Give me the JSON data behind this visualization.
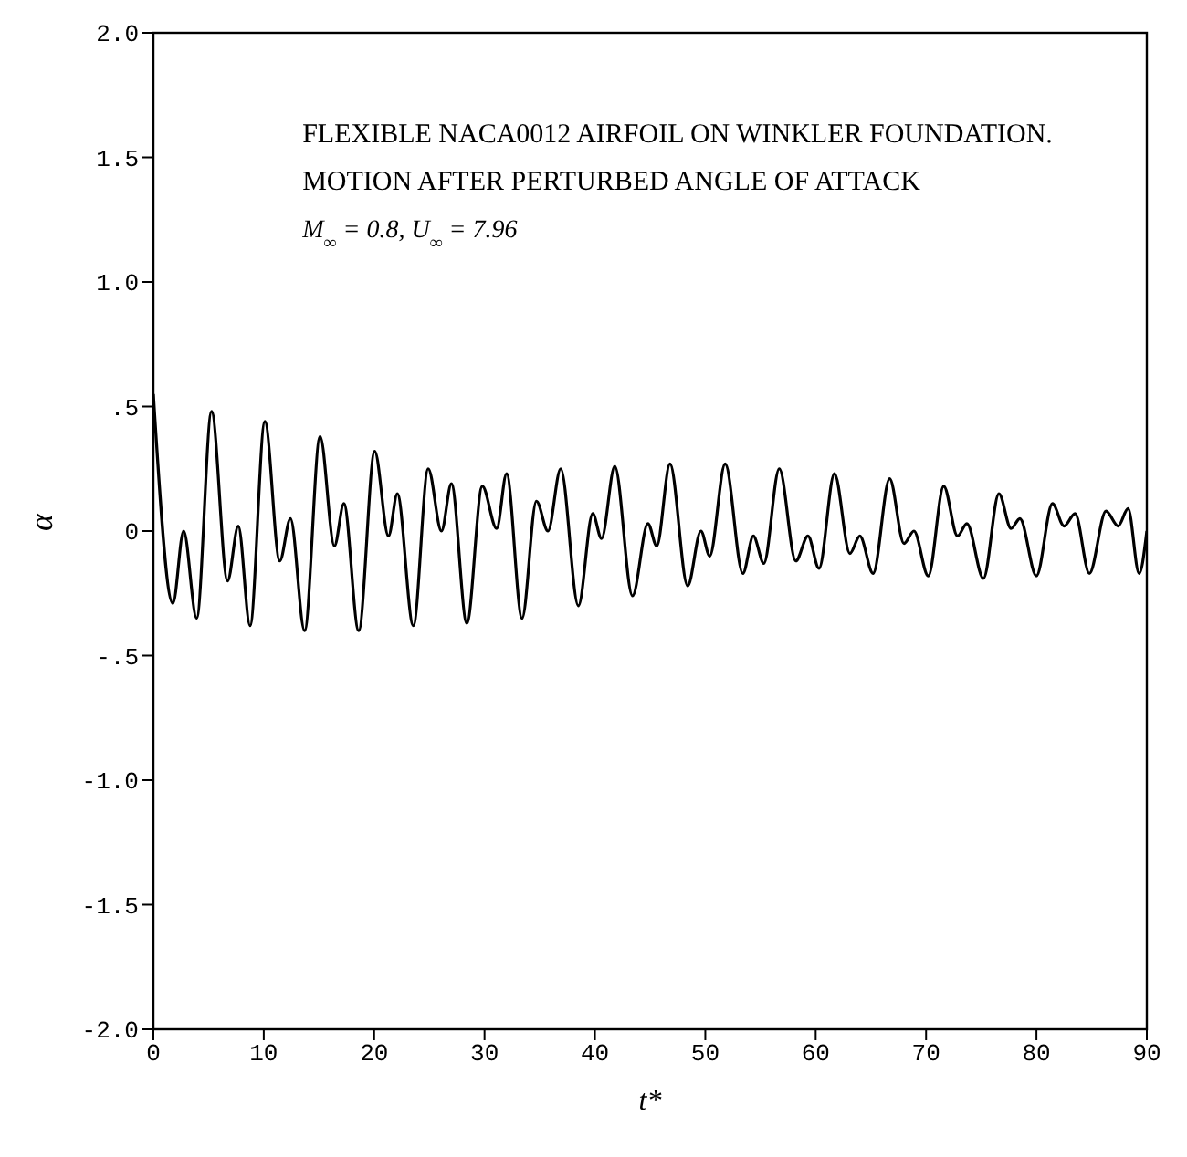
{
  "chart_data": {
    "type": "line",
    "xlabel": "t*",
    "ylabel": "α",
    "annotations": [
      "FLEXIBLE NACA0012 AIRFOIL ON WINKLER FOUNDATION.",
      "MOTION AFTER PERTURBED ANGLE OF ATTACK",
      "M$_{∞}$ = 0.8, U$_{∞}$ = 7.96"
    ],
    "series": [
      {
        "color": "#000000",
        "x": [
          0,
          1.77,
          2.74,
          3.92,
          5.27,
          6.72,
          7.69,
          8.76,
          10.1,
          11.45,
          12.42,
          13.7,
          15.1,
          16.4,
          17.26,
          18.6,
          20.05,
          21.3,
          22.1,
          23.55,
          24.9,
          26.1,
          27.0,
          28.4,
          29.8,
          31.1,
          32.0,
          33.4,
          34.7,
          35.75,
          36.9,
          38.5,
          39.8,
          40.6,
          41.8,
          43.4,
          44.8,
          45.6,
          46.8,
          48.4,
          49.6,
          50.4,
          51.8,
          53.4,
          54.35,
          55.3,
          56.7,
          58.2,
          59.3,
          60.3,
          61.7,
          63.1,
          64.0,
          65.2,
          66.7,
          68.0,
          68.9,
          70.2,
          71.6,
          72.85,
          73.7,
          75.2,
          76.6,
          77.7,
          78.5,
          80.0,
          81.45,
          82.5,
          83.5,
          84.8,
          86.3,
          87.4,
          88.3,
          89.3,
          90
        ],
        "values": [
          0.55,
          -0.29,
          0.0,
          -0.35,
          0.48,
          -0.2,
          0.02,
          -0.38,
          0.44,
          -0.12,
          0.05,
          -0.4,
          0.38,
          -0.06,
          0.11,
          -0.4,
          0.32,
          -0.02,
          0.15,
          -0.38,
          0.25,
          0.0,
          0.19,
          -0.37,
          0.18,
          0.01,
          0.23,
          -0.35,
          0.12,
          0.0,
          0.25,
          -0.3,
          0.07,
          -0.03,
          0.26,
          -0.26,
          0.03,
          -0.06,
          0.27,
          -0.22,
          0.0,
          -0.1,
          0.27,
          -0.17,
          -0.02,
          -0.13,
          0.25,
          -0.12,
          -0.02,
          -0.15,
          0.23,
          -0.09,
          -0.02,
          -0.17,
          0.21,
          -0.05,
          0.0,
          -0.18,
          0.18,
          -0.02,
          0.03,
          -0.19,
          0.15,
          0.01,
          0.05,
          -0.18,
          0.11,
          0.02,
          0.07,
          -0.17,
          0.08,
          0.02,
          0.09,
          -0.17,
          0.0
        ]
      }
    ],
    "xlim": [
      0,
      90
    ],
    "xticks": [
      0,
      10,
      20,
      30,
      40,
      50,
      60,
      70,
      80,
      90
    ],
    "ylim": [
      -2.0,
      2.0
    ],
    "yticks": [
      {
        "value": -2.0,
        "label": "-2.0"
      },
      {
        "value": -1.5,
        "label": "-1.5"
      },
      {
        "value": -1.0,
        "label": "-1.0"
      },
      {
        "value": -0.5,
        "label": "-.5"
      },
      {
        "value": 0,
        "label": "0"
      },
      {
        "value": 0.5,
        "label": ".5"
      },
      {
        "value": 1.0,
        "label": "1.0"
      },
      {
        "value": 1.5,
        "label": "1.5"
      },
      {
        "value": 2.0,
        "label": "2.0"
      }
    ],
    "grid": false,
    "marker": "none",
    "line_style": "solid"
  }
}
